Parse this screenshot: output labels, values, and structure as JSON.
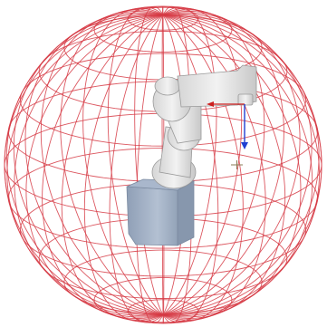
{
  "scene": {
    "subject": "robot-arm",
    "workspace_envelope": "wireframe-sphere"
  },
  "colors": {
    "background": "#ffffff",
    "wireframe": "#d63a44",
    "robot_body": "#e6e6e6",
    "robot_shade": "#bdbdbd",
    "robot_edge": "#9a9a9a",
    "base_body": "#a9b7cc",
    "base_shade": "#8797ad",
    "axis_x": "#cc1f1f",
    "axis_z": "#1f3fd1",
    "target_marker": "#8a7b55"
  },
  "icons": {
    "tool_frame": "tool-frame-axes-icon",
    "target": "target-point-icon"
  }
}
